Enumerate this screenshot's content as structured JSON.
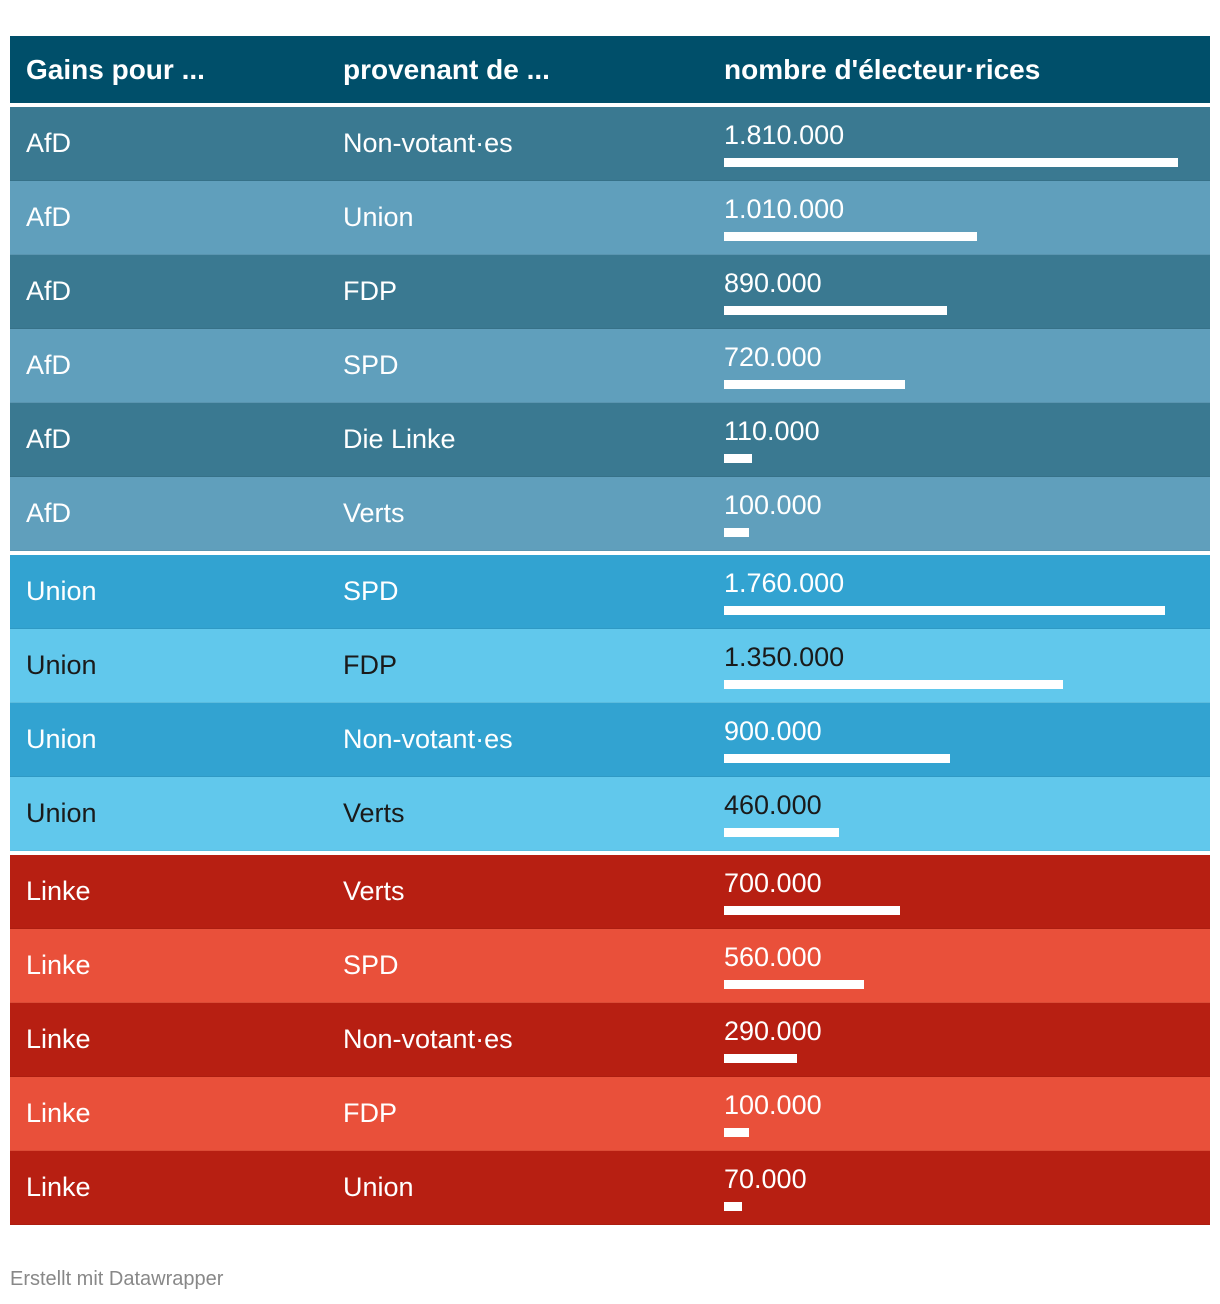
{
  "chart_data": {
    "type": "table",
    "columns": [
      "Gains pour ...",
      "provenant de ...",
      "nombre d'électeur·rices"
    ],
    "bar_max": 1810000,
    "groups": [
      {
        "party": "AfD",
        "color_dark": "#3a7991",
        "color_light": "#609fbc",
        "text_color_dark": "#ffffff",
        "text_color_light": "#ffffff",
        "rows": [
          {
            "gain": "AfD",
            "source": "Non-votant·es",
            "label": "1.810.000",
            "value": 1810000
          },
          {
            "gain": "AfD",
            "source": "Union",
            "label": "1.010.000",
            "value": 1010000
          },
          {
            "gain": "AfD",
            "source": "FDP",
            "label": "890.000",
            "value": 890000
          },
          {
            "gain": "AfD",
            "source": "SPD",
            "label": "720.000",
            "value": 720000
          },
          {
            "gain": "AfD",
            "source": "Die Linke",
            "label": "110.000",
            "value": 110000
          },
          {
            "gain": "AfD",
            "source": "Verts",
            "label": "100.000",
            "value": 100000
          }
        ]
      },
      {
        "party": "Union",
        "color_dark": "#32a3d1",
        "color_light": "#61c8ec",
        "text_color_dark": "#ffffff",
        "text_color_light": "#1a1a1a",
        "rows": [
          {
            "gain": "Union",
            "source": "SPD",
            "label": "1.760.000",
            "value": 1760000
          },
          {
            "gain": "Union",
            "source": "FDP",
            "label": "1.350.000",
            "value": 1350000
          },
          {
            "gain": "Union",
            "source": "Non-votant·es",
            "label": "900.000",
            "value": 900000
          },
          {
            "gain": "Union",
            "source": "Verts",
            "label": "460.000",
            "value": 460000
          }
        ]
      },
      {
        "party": "Linke",
        "color_dark": "#b71f12",
        "color_light": "#e9503a",
        "text_color_dark": "#ffffff",
        "text_color_light": "#ffffff",
        "rows": [
          {
            "gain": "Linke",
            "source": "Verts",
            "label": "700.000",
            "value": 700000
          },
          {
            "gain": "Linke",
            "source": "SPD",
            "label": "560.000",
            "value": 560000
          },
          {
            "gain": "Linke",
            "source": "Non-votant·es",
            "label": "290.000",
            "value": 290000
          },
          {
            "gain": "Linke",
            "source": "FDP",
            "label": "100.000",
            "value": 100000
          },
          {
            "gain": "Linke",
            "source": "Union",
            "label": "70.000",
            "value": 70000
          }
        ]
      }
    ]
  },
  "colors": {
    "header_bg": "#004f6a",
    "bar": "#ffffff",
    "separator": "#ffffff"
  },
  "footer": {
    "credit": "Erstellt mit Datawrapper"
  }
}
